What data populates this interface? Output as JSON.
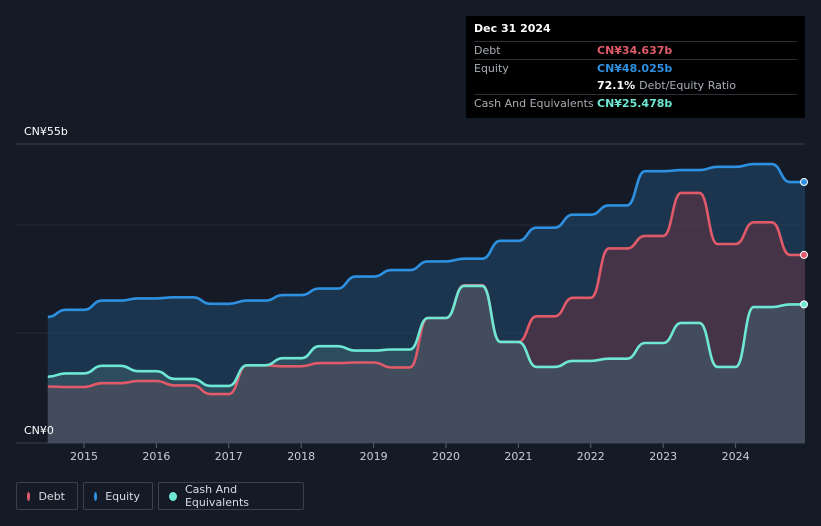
{
  "tooltip": {
    "date": "Dec 31 2024",
    "debt_label": "Debt",
    "debt_value": "CN¥34.637b",
    "equity_label": "Equity",
    "equity_value": "CN¥48.025b",
    "ratio_value": "72.1%",
    "ratio_label": "Debt/Equity Ratio",
    "cash_label": "Cash And Equivalents",
    "cash_value": "CN¥25.478b"
  },
  "y_axis": {
    "top_label": "CN¥55b",
    "bottom_label": "CN¥0"
  },
  "legend": [
    {
      "name": "Debt",
      "color": "#e05a6a"
    },
    {
      "name": "Equity",
      "color": "#2e90e0"
    },
    {
      "name": "Cash And Equivalents",
      "color": "#6ee8d4"
    }
  ],
  "colors": {
    "debt": "#e05a6a",
    "equity": "#2e90e0",
    "cash": "#6ee8d4",
    "background": "#151b26"
  },
  "chart_data": {
    "type": "area",
    "x_ticks": [
      2015,
      2016,
      2017,
      2018,
      2019,
      2020,
      2021,
      2022,
      2023,
      2024
    ],
    "ylim": [
      0,
      55
    ],
    "y_tick_labels": [
      "CN¥0",
      "CN¥55b"
    ],
    "series": [
      {
        "name": "Equity",
        "points": [
          [
            2014.5,
            23.2
          ],
          [
            2014.75,
            24.5
          ],
          [
            2015.0,
            24.5
          ],
          [
            2015.25,
            26.2
          ],
          [
            2015.5,
            26.2
          ],
          [
            2015.75,
            26.6
          ],
          [
            2016.0,
            26.6
          ],
          [
            2016.25,
            26.8
          ],
          [
            2016.5,
            26.8
          ],
          [
            2016.75,
            25.6
          ],
          [
            2017.0,
            25.6
          ],
          [
            2017.25,
            26.2
          ],
          [
            2017.5,
            26.2
          ],
          [
            2017.75,
            27.2
          ],
          [
            2018.0,
            27.2
          ],
          [
            2018.25,
            28.4
          ],
          [
            2018.5,
            28.4
          ],
          [
            2018.75,
            30.6
          ],
          [
            2019.0,
            30.6
          ],
          [
            2019.25,
            31.8
          ],
          [
            2019.5,
            31.8
          ],
          [
            2019.75,
            33.4
          ],
          [
            2020.0,
            33.4
          ],
          [
            2020.25,
            33.9
          ],
          [
            2020.5,
            33.9
          ],
          [
            2020.75,
            37.2
          ],
          [
            2021.0,
            37.2
          ],
          [
            2021.25,
            39.6
          ],
          [
            2021.5,
            39.6
          ],
          [
            2021.75,
            42.0
          ],
          [
            2022.0,
            42.0
          ],
          [
            2022.25,
            43.7
          ],
          [
            2022.5,
            43.7
          ],
          [
            2022.75,
            50.0
          ],
          [
            2023.0,
            50.0
          ],
          [
            2023.25,
            50.2
          ],
          [
            2023.5,
            50.2
          ],
          [
            2023.75,
            50.8
          ],
          [
            2024.0,
            50.8
          ],
          [
            2024.25,
            51.3
          ],
          [
            2024.5,
            51.3
          ],
          [
            2024.75,
            48.0
          ],
          [
            2025.0,
            48.0
          ]
        ]
      },
      {
        "name": "Debt",
        "points": [
          [
            2014.5,
            10.4
          ],
          [
            2014.75,
            10.3
          ],
          [
            2015.0,
            10.3
          ],
          [
            2015.25,
            11.0
          ],
          [
            2015.5,
            11.0
          ],
          [
            2015.75,
            11.4
          ],
          [
            2016.0,
            11.4
          ],
          [
            2016.25,
            10.6
          ],
          [
            2016.5,
            10.6
          ],
          [
            2016.75,
            9.0
          ],
          [
            2017.0,
            9.0
          ],
          [
            2017.25,
            14.3
          ],
          [
            2017.5,
            14.3
          ],
          [
            2017.75,
            14.1
          ],
          [
            2018.0,
            14.1
          ],
          [
            2018.25,
            14.7
          ],
          [
            2018.5,
            14.7
          ],
          [
            2018.75,
            14.8
          ],
          [
            2019.0,
            14.8
          ],
          [
            2019.25,
            13.9
          ],
          [
            2019.5,
            13.9
          ],
          [
            2019.75,
            23.0
          ],
          [
            2020.0,
            23.0
          ],
          [
            2020.25,
            29.0
          ],
          [
            2020.5,
            29.0
          ],
          [
            2020.75,
            18.6
          ],
          [
            2021.0,
            18.6
          ],
          [
            2021.25,
            23.3
          ],
          [
            2021.5,
            23.3
          ],
          [
            2021.75,
            26.7
          ],
          [
            2022.0,
            26.7
          ],
          [
            2022.25,
            35.8
          ],
          [
            2022.5,
            35.8
          ],
          [
            2022.75,
            38.1
          ],
          [
            2023.0,
            38.1
          ],
          [
            2023.25,
            46.0
          ],
          [
            2023.5,
            46.0
          ],
          [
            2023.75,
            36.6
          ],
          [
            2024.0,
            36.6
          ],
          [
            2024.25,
            40.6
          ],
          [
            2024.5,
            40.6
          ],
          [
            2024.75,
            34.6
          ],
          [
            2025.0,
            34.6
          ]
        ]
      },
      {
        "name": "Cash And Equivalents",
        "points": [
          [
            2014.5,
            12.2
          ],
          [
            2014.75,
            12.8
          ],
          [
            2015.0,
            12.8
          ],
          [
            2015.25,
            14.2
          ],
          [
            2015.5,
            14.2
          ],
          [
            2015.75,
            13.2
          ],
          [
            2016.0,
            13.2
          ],
          [
            2016.25,
            11.8
          ],
          [
            2016.5,
            11.8
          ],
          [
            2016.75,
            10.5
          ],
          [
            2017.0,
            10.5
          ],
          [
            2017.25,
            14.3
          ],
          [
            2017.5,
            14.3
          ],
          [
            2017.75,
            15.6
          ],
          [
            2018.0,
            15.6
          ],
          [
            2018.25,
            17.8
          ],
          [
            2018.5,
            17.8
          ],
          [
            2018.75,
            17.0
          ],
          [
            2019.0,
            17.0
          ],
          [
            2019.25,
            17.2
          ],
          [
            2019.5,
            17.2
          ],
          [
            2019.75,
            23.0
          ],
          [
            2020.0,
            23.0
          ],
          [
            2020.25,
            28.9
          ],
          [
            2020.5,
            28.9
          ],
          [
            2020.75,
            18.6
          ],
          [
            2021.0,
            18.6
          ],
          [
            2021.25,
            14.0
          ],
          [
            2021.5,
            14.0
          ],
          [
            2021.75,
            15.1
          ],
          [
            2022.0,
            15.1
          ],
          [
            2022.25,
            15.5
          ],
          [
            2022.5,
            15.5
          ],
          [
            2022.75,
            18.4
          ],
          [
            2023.0,
            18.4
          ],
          [
            2023.25,
            22.1
          ],
          [
            2023.5,
            22.1
          ],
          [
            2023.75,
            14.0
          ],
          [
            2024.0,
            14.0
          ],
          [
            2024.25,
            25.0
          ],
          [
            2024.5,
            25.0
          ],
          [
            2024.75,
            25.5
          ],
          [
            2025.0,
            25.5
          ]
        ]
      }
    ]
  }
}
